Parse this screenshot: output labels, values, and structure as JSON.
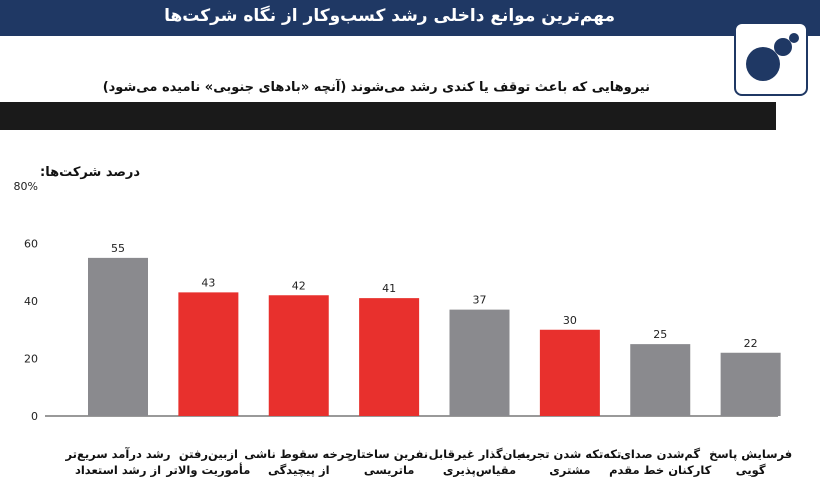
{
  "header": {
    "title": "مهم‌ترین موانع داخلی رشد کسب‌وکار از نگاه شرکت‌ها"
  },
  "colors": {
    "header_bg": "#1f3864",
    "red": "#e8302d",
    "gray": "#8a8a8e",
    "band": "#1a1a1a"
  },
  "chart_data": {
    "type": "bar",
    "title": "نیروهایی که باعث توقف یا کندی رشد می‌شوند (آنچه «بادهای جنوبی» نامیده می‌شود)",
    "ylabel": "درصد شرکت‌ها:",
    "ylim": [
      0,
      80
    ],
    "yticks": [
      "0",
      "20",
      "40",
      "60",
      "80%"
    ],
    "categories": [
      "رشد درآمد سریع‌تر از رشد استعداد",
      "ازبین‌رفتن مأموریت والاتر",
      "چرخه سقوط ناشی از پیچیدگی",
      "نفرین ساختار ماتریسی",
      "بنیان‌گذار غیرقابل مقیاس‌پذیری",
      "تکه‌تکه شدن تجربه مشتری",
      "گم‌شدن صدای کارکنان خط مقدم",
      "فرسایش پاسخ گویی"
    ],
    "values": [
      55,
      43,
      42,
      41,
      37,
      30,
      25,
      22
    ],
    "value_labels": [
      "55",
      "43",
      "42",
      "41",
      "37",
      "30",
      "25",
      "22"
    ],
    "bar_colors": [
      "#8a8a8e",
      "#e8302d",
      "#e8302d",
      "#e8302d",
      "#8a8a8e",
      "#e8302d",
      "#8a8a8e",
      "#8a8a8e"
    ],
    "grid": false
  }
}
